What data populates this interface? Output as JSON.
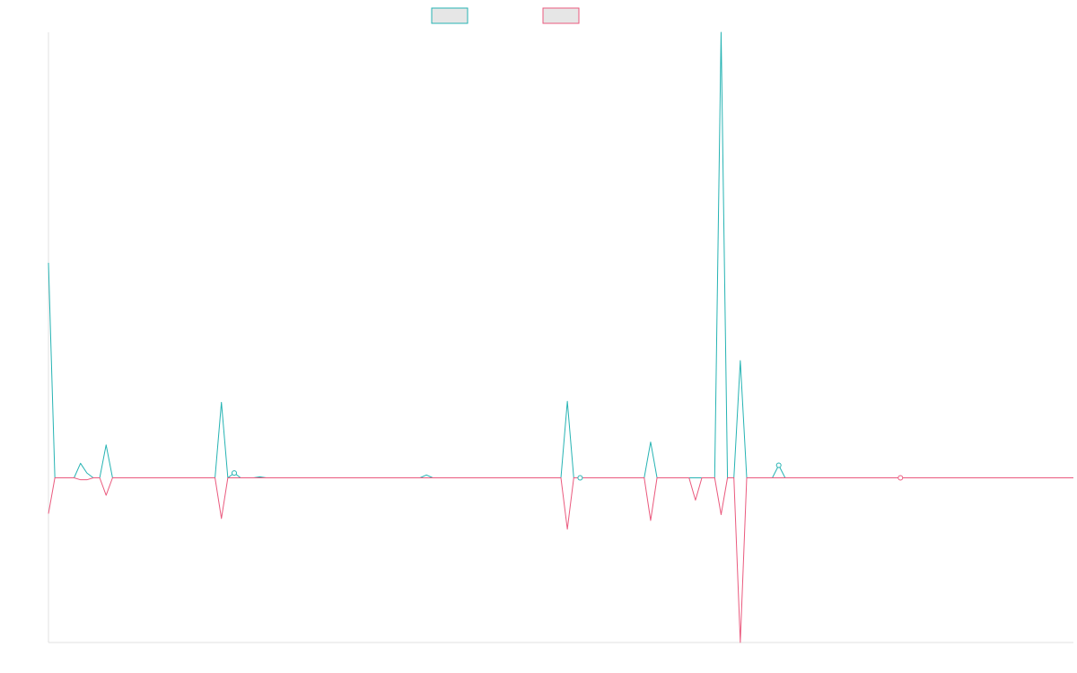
{
  "chart_data": {
    "type": "line",
    "title": "",
    "xlabel": "",
    "ylabel": "",
    "legend": {
      "placement": "top-center",
      "shows_labels": false
    },
    "grid": false,
    "x_range": [
      0,
      160
    ],
    "ylim": [
      -1.7,
      4.6
    ],
    "series": [
      {
        "color": "#26b3b3",
        "values": [
          2.22,
          0,
          0,
          0,
          0,
          0.15,
          0.05,
          0,
          0,
          0.34,
          0,
          0,
          0,
          0,
          0,
          0,
          0,
          0,
          0,
          0,
          0,
          0,
          0,
          0,
          0,
          0,
          0,
          0,
          0,
          0,
          0,
          0,
          0,
          0,
          0,
          0,
          0,
          0,
          0,
          0,
          0,
          0,
          0,
          0,
          0,
          0,
          0,
          0,
          0,
          0,
          0,
          0,
          0,
          0,
          0,
          0,
          0,
          0,
          0,
          0,
          0,
          0,
          0,
          0,
          0,
          0,
          0,
          0,
          0,
          0,
          0,
          0,
          0,
          0,
          0,
          0,
          0,
          0,
          0,
          0,
          0,
          0,
          0,
          0,
          0,
          0,
          0,
          0,
          0,
          0,
          0,
          0,
          0,
          0,
          0,
          0,
          0,
          0,
          0,
          0,
          0,
          0,
          0,
          0,
          0,
          0,
          0,
          0,
          0,
          0,
          0,
          0,
          0,
          0,
          0,
          0,
          0,
          0,
          0,
          0,
          0,
          0,
          0,
          0,
          0,
          0,
          0,
          0,
          0,
          0,
          0,
          0,
          0,
          0,
          0,
          0,
          0,
          0,
          0,
          0,
          0,
          0,
          0,
          0,
          0,
          0,
          0,
          0,
          0,
          0,
          0,
          0,
          0,
          0,
          0,
          0,
          0,
          0,
          0,
          0,
          0
        ]
      },
      {
        "color": "#ea5a7e",
        "values": [
          -0.37,
          0,
          0,
          0,
          0,
          -0.02,
          -0.02,
          0,
          0,
          -0.18,
          0,
          0,
          0,
          0,
          0,
          0,
          0,
          0,
          0,
          0,
          0,
          0,
          0,
          0,
          0,
          0,
          0,
          0,
          0,
          0,
          0,
          0,
          0,
          0,
          0,
          0,
          0,
          0,
          0,
          0,
          0,
          0,
          0,
          0,
          0,
          0,
          0,
          0,
          0,
          0,
          0,
          0,
          0,
          0,
          0,
          0,
          0,
          0,
          0,
          0,
          0,
          0,
          0,
          0,
          0,
          0,
          0,
          0,
          0,
          0,
          0,
          0,
          0,
          0,
          0,
          0,
          0,
          0,
          0,
          0,
          0,
          0,
          0,
          0,
          0,
          0,
          0,
          0,
          0,
          0,
          0,
          0,
          0,
          0,
          0,
          0,
          0,
          0,
          0,
          0,
          0,
          0,
          0,
          0,
          0,
          0,
          0,
          0,
          0,
          0,
          0,
          0,
          0,
          0,
          0,
          0,
          0,
          0,
          0,
          0,
          0,
          0,
          0,
          0,
          0,
          0,
          0,
          0,
          0,
          0,
          0,
          0,
          0,
          0,
          0,
          0,
          0,
          0,
          0,
          0,
          0,
          0,
          0,
          0,
          0,
          0,
          0,
          0,
          0,
          0,
          0,
          0,
          0,
          0,
          0,
          0,
          0,
          0,
          0,
          0,
          0
        ]
      }
    ],
    "peaks": [
      {
        "series": 0,
        "x": 0,
        "y": 2.22
      },
      {
        "series": 0,
        "x": 27,
        "y": 0.78
      },
      {
        "series": 0,
        "x": 29,
        "y": 0.05
      },
      {
        "series": 0,
        "x": 33,
        "y": 0.01
      },
      {
        "series": 0,
        "x": 59,
        "y": 0.03
      },
      {
        "series": 0,
        "x": 81,
        "y": 0.79
      },
      {
        "series": 0,
        "x": 83,
        "y": 0.0
      },
      {
        "series": 0,
        "x": 94,
        "y": 0.37
      },
      {
        "series": 0,
        "x": 105,
        "y": 4.78
      },
      {
        "series": 0,
        "x": 108,
        "y": 1.21
      },
      {
        "series": 0,
        "x": 114,
        "y": 0.13
      },
      {
        "series": 1,
        "x": 27,
        "y": -0.42
      },
      {
        "series": 1,
        "x": 81,
        "y": -0.53
      },
      {
        "series": 1,
        "x": 94,
        "y": -0.44
      },
      {
        "series": 1,
        "x": 101,
        "y": -0.23
      },
      {
        "series": 1,
        "x": 105,
        "y": -0.38
      },
      {
        "series": 1,
        "x": 108,
        "y": -1.75
      }
    ],
    "markers": [
      {
        "series": 0,
        "x": 29
      },
      {
        "series": 0,
        "x": 83
      },
      {
        "series": 0,
        "x": 114
      },
      {
        "series": 1,
        "x": 133
      }
    ]
  }
}
